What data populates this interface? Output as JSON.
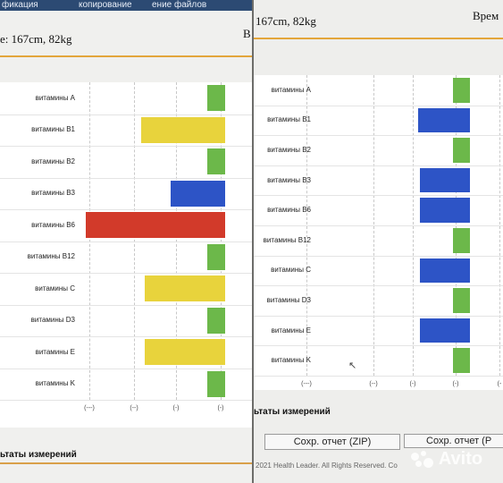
{
  "left_screen": {
    "toolbar": {
      "items": [
        "фикация",
        "копирование",
        "ение файлов"
      ]
    },
    "header": {
      "info": "e: 167cm, 82kg",
      "edge_char": "B"
    },
    "results_title": "ьтаты измерений",
    "chart_data": {
      "type": "bar",
      "orientation": "horizontal",
      "categories": [
        "витамины A",
        "витамины B1",
        "витамины B2",
        "витамины B3",
        "витамины B6",
        "витамины B12",
        "витамины C",
        "витамины D3",
        "витамины E",
        "витамины K"
      ],
      "tick_labels": [
        "(---)",
        "(--)",
        "(-)",
        "(-)"
      ],
      "bars": [
        {
          "start": 3.5,
          "end": 4,
          "color": "#6cb84a"
        },
        {
          "start": 1.7,
          "end": 4,
          "color": "#e8d33c"
        },
        {
          "start": 3.5,
          "end": 4,
          "color": "#6cb84a"
        },
        {
          "start": 2.5,
          "end": 4,
          "color": "#2d54c6"
        },
        {
          "start": 0.2,
          "end": 4,
          "color": "#d23a2a"
        },
        {
          "start": 3.5,
          "end": 4,
          "color": "#6cb84a"
        },
        {
          "start": 1.8,
          "end": 4,
          "color": "#e8d33c"
        },
        {
          "start": 3.5,
          "end": 4,
          "color": "#6cb84a"
        },
        {
          "start": 1.8,
          "end": 4,
          "color": "#e8d33c"
        },
        {
          "start": 3.5,
          "end": 4,
          "color": "#6cb84a"
        }
      ]
    }
  },
  "right_screen": {
    "header": {
      "info": "167cm, 82kg",
      "time_label": "Врем"
    },
    "results_title": "ьтаты измерений",
    "buttons": {
      "save_zip": "Сохр. отчет (ZIP)",
      "save_pdf": "Сохр. отчет (P"
    },
    "footer": "2021 Health Leader. All Rights Reserved.  Co",
    "chart_data": {
      "type": "bar",
      "orientation": "horizontal",
      "categories": [
        "витамины A",
        "витамины B1",
        "витамины B2",
        "витамины B3",
        "витамины B6",
        "витамины B12",
        "витамины C",
        "витамины D3",
        "витамины E",
        "витамины K"
      ],
      "tick_labels": [
        "(---)",
        "(--)",
        "(-)",
        "(-)",
        "(-"
      ],
      "bars": [
        {
          "start": 3.45,
          "end": 3.95,
          "color": "#6cb84a"
        },
        {
          "start": 2.45,
          "end": 3.95,
          "color": "#2d54c6"
        },
        {
          "start": 3.45,
          "end": 3.95,
          "color": "#6cb84a"
        },
        {
          "start": 2.5,
          "end": 3.95,
          "color": "#2d54c6"
        },
        {
          "start": 2.5,
          "end": 3.95,
          "color": "#2d54c6"
        },
        {
          "start": 3.45,
          "end": 3.95,
          "color": "#6cb84a"
        },
        {
          "start": 2.5,
          "end": 3.95,
          "color": "#2d54c6"
        },
        {
          "start": 3.45,
          "end": 3.95,
          "color": "#6cb84a"
        },
        {
          "start": 2.5,
          "end": 3.95,
          "color": "#2d54c6"
        },
        {
          "start": 3.45,
          "end": 3.95,
          "color": "#6cb84a"
        }
      ]
    }
  },
  "watermark": "Avito"
}
